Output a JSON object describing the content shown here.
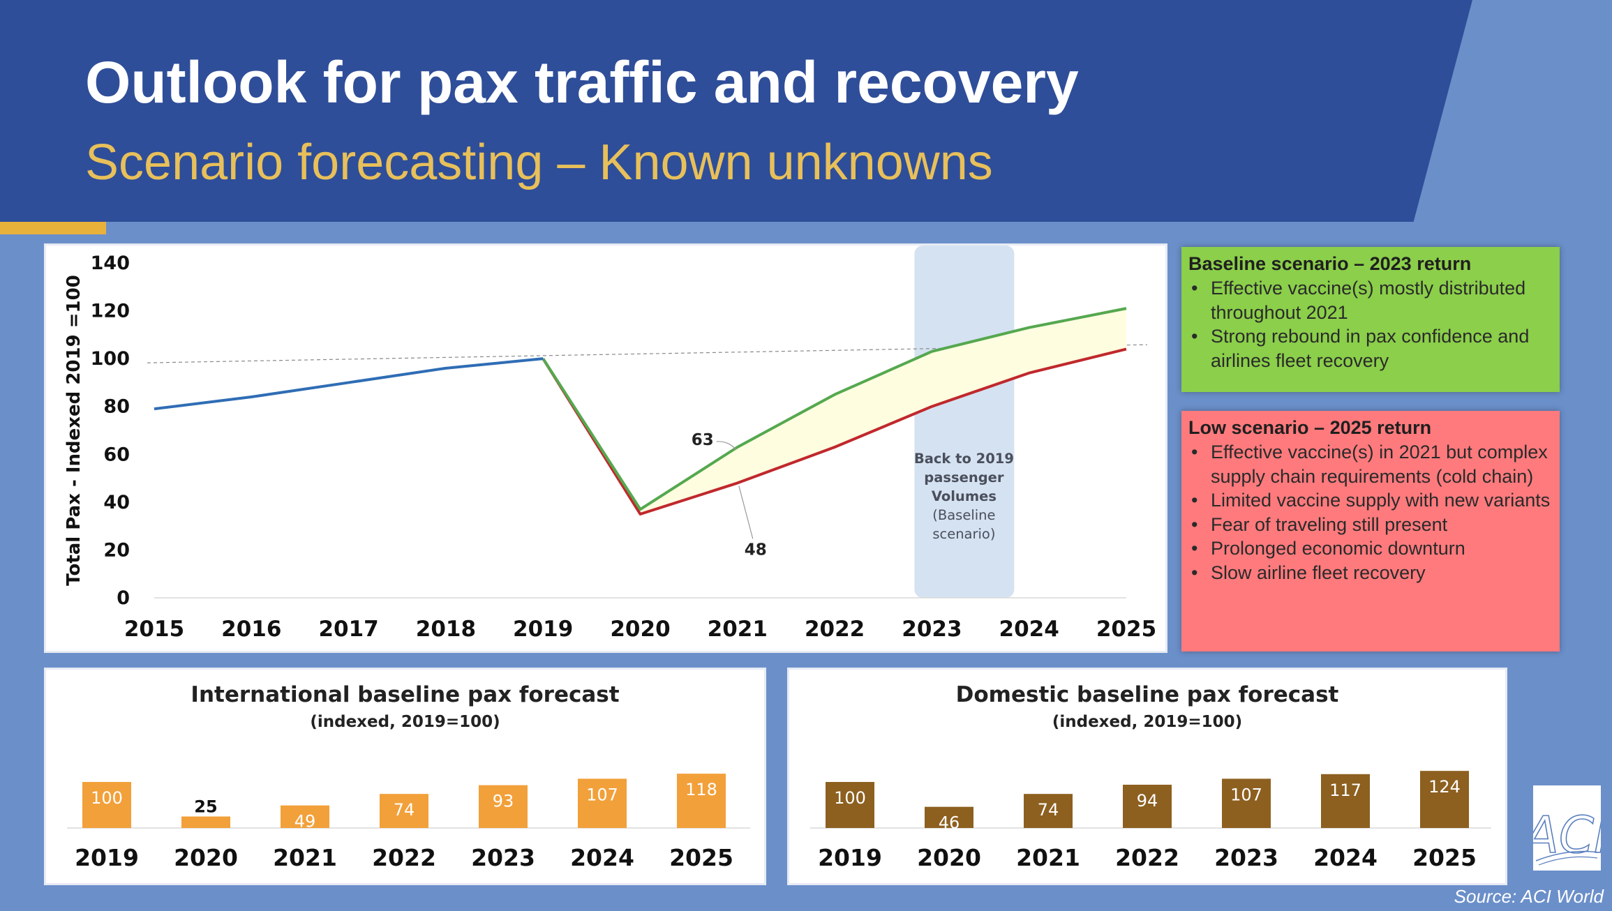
{
  "header": {
    "title": "Outlook for pax traffic and recovery",
    "subtitle": "Scenario forecasting – Known unknowns"
  },
  "colors": {
    "header_bg": "#2f4e99",
    "accent_gold": "#e8b13a",
    "page_bg": "#6b8fc9",
    "historical_line": "#2f6db5",
    "baseline_line": "#55a84f",
    "low_line": "#c0282c",
    "band_fill": "#fefde0",
    "recovery_band": "#d5e2f1",
    "intl_bar": "#f2a03a",
    "dom_bar": "#8d6020",
    "baseline_box": "#8bcf4a",
    "low_box": "#ff7a7d"
  },
  "chart_data": [
    {
      "type": "line",
      "ylabel": "Total Pax - Indexed 2019 =100",
      "xlabel": "",
      "ylim": [
        0,
        140
      ],
      "yticks": [
        0,
        20,
        40,
        60,
        80,
        100,
        120,
        140
      ],
      "x": [
        "2015",
        "2016",
        "2017",
        "2018",
        "2019",
        "2020",
        "2021",
        "2022",
        "2023",
        "2024",
        "2025"
      ],
      "series": [
        {
          "values": [
            79,
            84,
            90,
            96,
            100,
            null,
            null,
            null,
            null,
            null,
            null
          ]
        },
        {
          "values": [
            null,
            null,
            null,
            null,
            100,
            37,
            63,
            85,
            103,
            113,
            121
          ]
        },
        {
          "values": [
            null,
            null,
            null,
            null,
            100,
            35,
            48,
            63,
            80,
            94,
            104
          ]
        }
      ],
      "reference_line": 100,
      "shaded_band_between": [
        "series 2",
        "series 3"
      ],
      "highlight_region": {
        "x": "2023",
        "label_bold": "Back to 2019 passenger Volumes",
        "label_normal": "(Baseline scenario)"
      },
      "annotations": [
        {
          "x": "2021",
          "value": 63,
          "text": "63"
        },
        {
          "x": "2021",
          "value": 48,
          "text": "48"
        }
      ],
      "grid": false
    },
    {
      "type": "bar",
      "title": "International baseline pax forecast",
      "subtitle": "(indexed, 2019=100)",
      "categories": [
        "2019",
        "2020",
        "2021",
        "2022",
        "2023",
        "2024",
        "2025"
      ],
      "values": [
        100,
        25,
        49,
        74,
        93,
        107,
        118
      ]
    },
    {
      "type": "bar",
      "title": "Domestic baseline pax forecast",
      "subtitle": "(indexed, 2019=100)",
      "categories": [
        "2019",
        "2020",
        "2021",
        "2022",
        "2023",
        "2024",
        "2025"
      ],
      "values": [
        100,
        46,
        74,
        94,
        107,
        117,
        124
      ]
    }
  ],
  "scenarios": {
    "baseline": {
      "title": "Baseline scenario – 2023 return",
      "items": [
        "Effective vaccine(s) mostly distributed throughout 2021",
        "Strong rebound in pax confidence and airlines fleet recovery"
      ]
    },
    "low": {
      "title": "Low scenario – 2025 return",
      "items": [
        "Effective vaccine(s) in 2021 but complex supply chain requirements (cold chain)",
        "Limited vaccine supply with new variants",
        "Fear of traveling still present",
        "Prolonged economic downturn",
        "Slow airline fleet recovery"
      ]
    }
  },
  "logo_text": "ACI",
  "source": "Source: ACI World"
}
